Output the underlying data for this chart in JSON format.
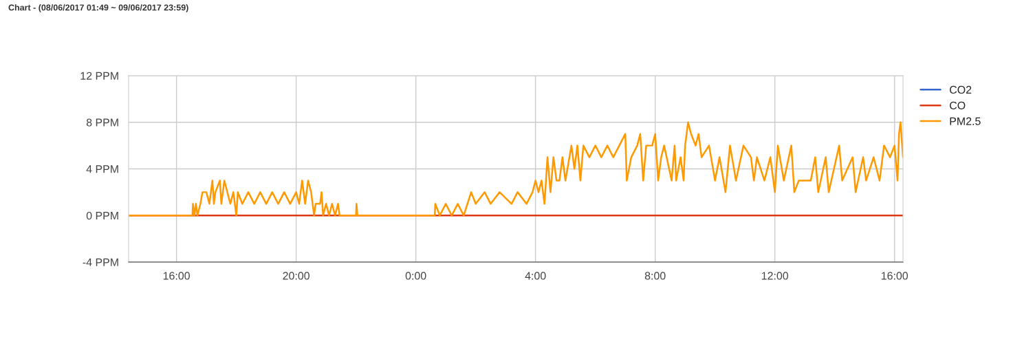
{
  "chart_data": {
    "type": "line",
    "title": "Chart - (08/06/2017 01:49 ~ 09/06/2017 23:59)",
    "xlim": [
      "2017-06-08T14:24",
      "2017-06-09T16:17"
    ],
    "xticks": [
      {
        "value": "2017-06-08T16:00",
        "label": "16:00"
      },
      {
        "value": "2017-06-08T20:00",
        "label": "20:00"
      },
      {
        "value": "2017-06-09T00:00",
        "label": "0:00"
      },
      {
        "value": "2017-06-09T04:00",
        "label": "4:00"
      },
      {
        "value": "2017-06-09T08:00",
        "label": "8:00"
      },
      {
        "value": "2017-06-09T12:00",
        "label": "12:00"
      },
      {
        "value": "2017-06-09T16:00",
        "label": "16:00"
      }
    ],
    "ylim": [
      -4,
      12
    ],
    "yticks": [
      {
        "value": -4,
        "label": "-4 PPM"
      },
      {
        "value": 0,
        "label": "0 PPM"
      },
      {
        "value": 4,
        "label": "4 PPM"
      },
      {
        "value": 8,
        "label": "8 PPM"
      },
      {
        "value": 12,
        "label": "12 PPM"
      }
    ],
    "grid": true,
    "legend": "top right",
    "line_style": "solid",
    "marker": "none",
    "series": [
      {
        "name": "CO2",
        "color": "#3366cc"
      },
      {
        "name": "CO",
        "color": "#dc3912",
        "x": [
          "2017-06-08T14:24",
          "2017-06-09T16:17"
        ],
        "values": [
          0,
          0
        ]
      },
      {
        "name": "PM2.5",
        "color": "#ff9900",
        "x": [
          "2017-06-08T14:24",
          "2017-06-08T16:32",
          "2017-06-08T16:33",
          "2017-06-08T16:36",
          "2017-06-08T16:39",
          "2017-06-08T16:42",
          "2017-06-08T16:48",
          "2017-06-08T16:52",
          "2017-06-08T17:00",
          "2017-06-08T17:06",
          "2017-06-08T17:12",
          "2017-06-08T17:15",
          "2017-06-08T17:18",
          "2017-06-08T17:27",
          "2017-06-08T17:30",
          "2017-06-08T17:36",
          "2017-06-08T17:42",
          "2017-06-08T17:48",
          "2017-06-08T17:54",
          "2017-06-08T18:00",
          "2017-06-08T18:03",
          "2017-06-08T18:12",
          "2017-06-08T18:24",
          "2017-06-08T18:36",
          "2017-06-08T18:48",
          "2017-06-08T19:00",
          "2017-06-08T19:12",
          "2017-06-08T19:24",
          "2017-06-08T19:36",
          "2017-06-08T19:48",
          "2017-06-08T20:00",
          "2017-06-08T20:06",
          "2017-06-08T20:12",
          "2017-06-08T20:18",
          "2017-06-08T20:24",
          "2017-06-08T20:30",
          "2017-06-08T20:36",
          "2017-06-08T20:39",
          "2017-06-08T20:48",
          "2017-06-08T20:51",
          "2017-06-08T20:54",
          "2017-06-08T21:00",
          "2017-06-08T21:06",
          "2017-06-08T21:12",
          "2017-06-08T21:18",
          "2017-06-08T21:24",
          "2017-06-08T21:27",
          "2017-06-08T22:00",
          "2017-06-08T22:01",
          "2017-06-08T22:03",
          "2017-06-09T00:38",
          "2017-06-09T00:39",
          "2017-06-09T00:48",
          "2017-06-09T01:00",
          "2017-06-09T01:12",
          "2017-06-09T01:24",
          "2017-06-09T01:36",
          "2017-06-09T01:51",
          "2017-06-09T02:00",
          "2017-06-09T02:18",
          "2017-06-09T02:30",
          "2017-06-09T02:48",
          "2017-06-09T03:12",
          "2017-06-09T03:24",
          "2017-06-09T03:42",
          "2017-06-09T03:54",
          "2017-06-09T04:00",
          "2017-06-09T04:06",
          "2017-06-09T04:12",
          "2017-06-09T04:18",
          "2017-06-09T04:24",
          "2017-06-09T04:30",
          "2017-06-09T04:36",
          "2017-06-09T04:42",
          "2017-06-09T04:48",
          "2017-06-09T04:54",
          "2017-06-09T05:00",
          "2017-06-09T05:12",
          "2017-06-09T05:18",
          "2017-06-09T05:24",
          "2017-06-09T05:30",
          "2017-06-09T05:36",
          "2017-06-09T05:48",
          "2017-06-09T06:00",
          "2017-06-09T06:12",
          "2017-06-09T06:24",
          "2017-06-09T06:36",
          "2017-06-09T06:48",
          "2017-06-09T07:00",
          "2017-06-09T07:03",
          "2017-06-09T07:12",
          "2017-06-09T07:24",
          "2017-06-09T07:30",
          "2017-06-09T07:36",
          "2017-06-09T07:42",
          "2017-06-09T07:54",
          "2017-06-09T08:00",
          "2017-06-09T08:06",
          "2017-06-09T08:12",
          "2017-06-09T08:18",
          "2017-06-09T08:33",
          "2017-06-09T08:39",
          "2017-06-09T08:42",
          "2017-06-09T08:51",
          "2017-06-09T08:57",
          "2017-06-09T09:00",
          "2017-06-09T09:06",
          "2017-06-09T09:12",
          "2017-06-09T09:21",
          "2017-06-09T09:27",
          "2017-06-09T09:33",
          "2017-06-09T09:48",
          "2017-06-09T10:00",
          "2017-06-09T10:09",
          "2017-06-09T10:21",
          "2017-06-09T10:30",
          "2017-06-09T10:42",
          "2017-06-09T10:57",
          "2017-06-09T11:12",
          "2017-06-09T11:18",
          "2017-06-09T11:24",
          "2017-06-09T11:39",
          "2017-06-09T11:51",
          "2017-06-09T12:00",
          "2017-06-09T12:06",
          "2017-06-09T12:18",
          "2017-06-09T12:33",
          "2017-06-09T12:39",
          "2017-06-09T12:48",
          "2017-06-09T13:12",
          "2017-06-09T13:21",
          "2017-06-09T13:27",
          "2017-06-09T13:42",
          "2017-06-09T13:48",
          "2017-06-09T14:09",
          "2017-06-09T14:15",
          "2017-06-09T14:36",
          "2017-06-09T14:42",
          "2017-06-09T14:57",
          "2017-06-09T15:03",
          "2017-06-09T15:18",
          "2017-06-09T15:30",
          "2017-06-09T15:39",
          "2017-06-09T15:51",
          "2017-06-09T16:00",
          "2017-06-09T16:06",
          "2017-06-09T16:09",
          "2017-06-09T16:12",
          "2017-06-09T16:17"
        ],
        "values": [
          0,
          0,
          1,
          0,
          1,
          0,
          1,
          2,
          2,
          1,
          3,
          1,
          2,
          3,
          1,
          3,
          2,
          1,
          2,
          0,
          2,
          1,
          2,
          1,
          2,
          1,
          2,
          1,
          2,
          1,
          2,
          1,
          3,
          1,
          3,
          2,
          0,
          1,
          1,
          2,
          0,
          1,
          0,
          1,
          0,
          1,
          0,
          0,
          1,
          0,
          0,
          1,
          0,
          1,
          0,
          1,
          0,
          2,
          1,
          2,
          1,
          2,
          1,
          2,
          1,
          2,
          3,
          2,
          3,
          1,
          5,
          2,
          5,
          3,
          3,
          5,
          3,
          6,
          4,
          6,
          3,
          6,
          5,
          6,
          5,
          6,
          5,
          6,
          7,
          3,
          5,
          6,
          7,
          3,
          6,
          6,
          7,
          3,
          5,
          6,
          3,
          6,
          3,
          5,
          3,
          6,
          8,
          7,
          6,
          7,
          5,
          6,
          3,
          5,
          2,
          6,
          3,
          6,
          5,
          3,
          5,
          3,
          5,
          2,
          6,
          3,
          6,
          2,
          3,
          3,
          5,
          2,
          5,
          2,
          6,
          3,
          5,
          2,
          5,
          3,
          5,
          3,
          6,
          5,
          6,
          3,
          7,
          8,
          5
        ]
      }
    ]
  }
}
